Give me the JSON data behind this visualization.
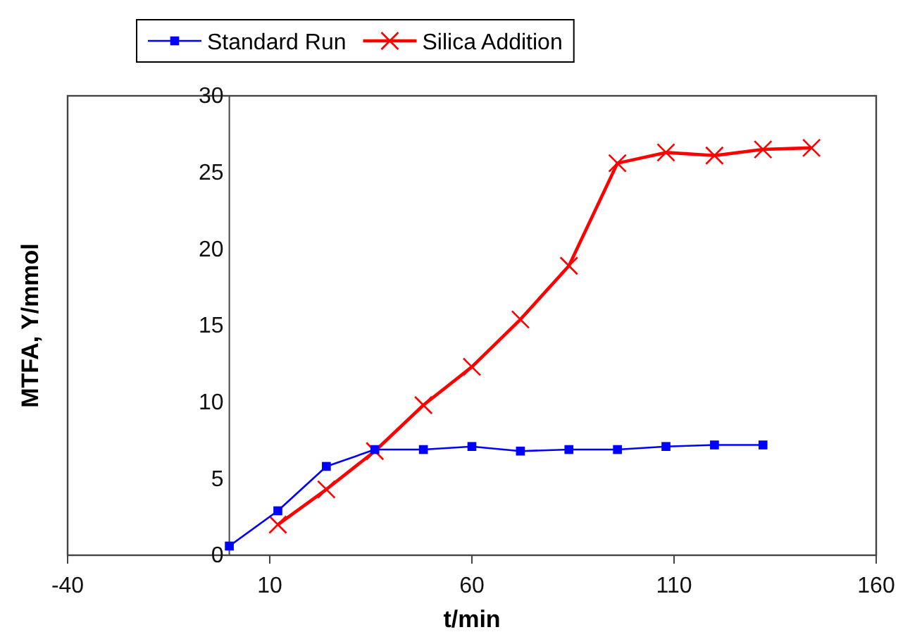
{
  "chart_data": {
    "type": "line",
    "xlabel": "t/min",
    "ylabel": "MTFA, Y/mmol",
    "xlim": [
      -40,
      160
    ],
    "xticks": [
      -40,
      10,
      60,
      110,
      160
    ],
    "ylim": [
      0,
      30
    ],
    "yticks": [
      0,
      5,
      10,
      15,
      20,
      25,
      30
    ],
    "grid": false,
    "legend": "top",
    "series": [
      {
        "name": "Standard Run",
        "color": "#0000ff",
        "marker": "square",
        "x": [
          0,
          12,
          24,
          36,
          48,
          60,
          72,
          84,
          96,
          108,
          120,
          132
        ],
        "values": [
          0.6,
          2.9,
          5.8,
          6.9,
          6.9,
          7.1,
          6.8,
          6.9,
          6.9,
          7.1,
          7.2,
          7.2
        ]
      },
      {
        "name": "Silica Addition",
        "color": "#ff0000",
        "marker": "cross",
        "x": [
          12,
          24,
          36,
          48,
          60,
          72,
          84,
          96,
          108,
          120,
          132,
          144
        ],
        "values": [
          2.0,
          4.3,
          6.8,
          9.8,
          12.3,
          15.4,
          18.9,
          25.6,
          26.3,
          26.1,
          26.5,
          26.6
        ]
      }
    ]
  }
}
